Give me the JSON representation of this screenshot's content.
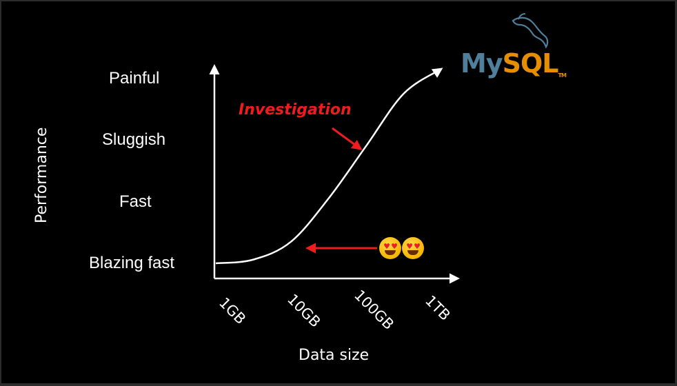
{
  "chart_data": {
    "type": "line",
    "xlabel": "Data size",
    "ylabel": "Performance",
    "x_categories": [
      "1GB",
      "10GB",
      "100GB",
      "1TB"
    ],
    "y_categories": [
      "Blazing fast",
      "Fast",
      "Sluggish",
      "Painful"
    ],
    "series": [
      {
        "x": [
          0,
          0.5,
          1,
          1.5,
          2,
          2.5,
          3
        ],
        "y": [
          0,
          0.06,
          0.35,
          1.05,
          1.9,
          2.75,
          3.15
        ]
      }
    ],
    "annotations": [
      {
        "text": "Investigation",
        "color": "#ee1c1c",
        "points_to_x": 2.0
      },
      {
        "text": "",
        "icon": "heart-eyes-emoji",
        "count": 2,
        "points_to_x": 1.3
      }
    ]
  },
  "logo": {
    "part1": "My",
    "part2": "SQL",
    "icon": "dolphin-icon"
  }
}
